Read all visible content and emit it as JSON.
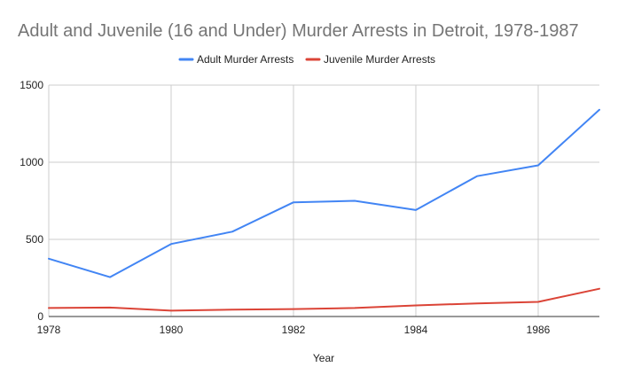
{
  "chart_data": {
    "type": "line",
    "title": "Adult and Juvenile (16 and Under) Murder Arrests in Detroit, 1978-1987",
    "xlabel": "Year",
    "ylabel": "",
    "x": [
      1978,
      1979,
      1980,
      1981,
      1982,
      1983,
      1984,
      1985,
      1986,
      1987
    ],
    "xlim": [
      1978,
      1987
    ],
    "ylim": [
      0,
      1500
    ],
    "xticks": [
      "1978",
      "1980",
      "1982",
      "1984",
      "1986"
    ],
    "yticks": [
      "0",
      "500",
      "1000",
      "1500"
    ],
    "grid": true,
    "legend_position": "top-center",
    "series": [
      {
        "name": "Adult Murder Arrests",
        "color": "#4285F4",
        "values": [
          375,
          255,
          470,
          550,
          740,
          750,
          690,
          910,
          980,
          1340
        ]
      },
      {
        "name": "Juvenile Murder Arrests",
        "color": "#DB4437",
        "values": [
          55,
          58,
          38,
          45,
          48,
          55,
          72,
          85,
          95,
          180
        ]
      }
    ]
  }
}
